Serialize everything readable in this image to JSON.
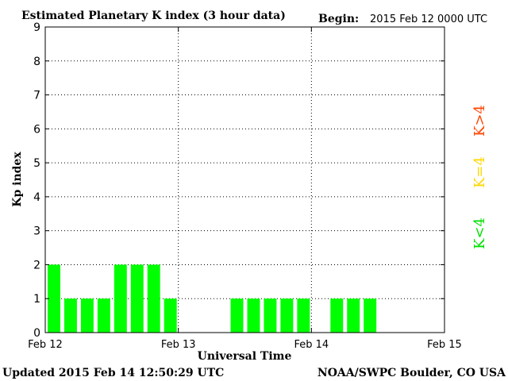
{
  "header": {
    "title": "Estimated Planetary K index (3 hour data)",
    "begin_label": "Begin:",
    "begin_value": "2015 Feb 12 0000 UTC"
  },
  "footer": {
    "updated": "Updated 2015 Feb 14 12:50:29 UTC",
    "source": "NOAA/SWPC Boulder, CO USA"
  },
  "legend": [
    {
      "label": "K>4",
      "color": "#ff4500"
    },
    {
      "label": "K=4",
      "color": "#ffd700"
    },
    {
      "label": "K<4",
      "color": "#00ff00"
    }
  ],
  "chart_data": {
    "type": "bar",
    "title": "Estimated Planetary K index (3 hour data)",
    "xlabel": "Universal Time",
    "ylabel": "Kp index",
    "ylim": [
      0,
      9
    ],
    "yticks": [
      "0",
      "1",
      "2",
      "3",
      "4",
      "5",
      "6",
      "7",
      "8",
      "9"
    ],
    "xticks": [
      "Feb 12",
      "Feb 13",
      "Feb 14",
      "Feb 15"
    ],
    "grid": true,
    "bar_color": "#00ff00",
    "intervals_per_day": 8,
    "values": [
      2,
      1,
      1,
      1,
      2,
      2,
      2,
      1,
      null,
      null,
      null,
      1,
      1,
      1,
      1,
      1,
      null,
      1,
      1,
      1,
      null,
      null,
      null,
      null
    ]
  }
}
